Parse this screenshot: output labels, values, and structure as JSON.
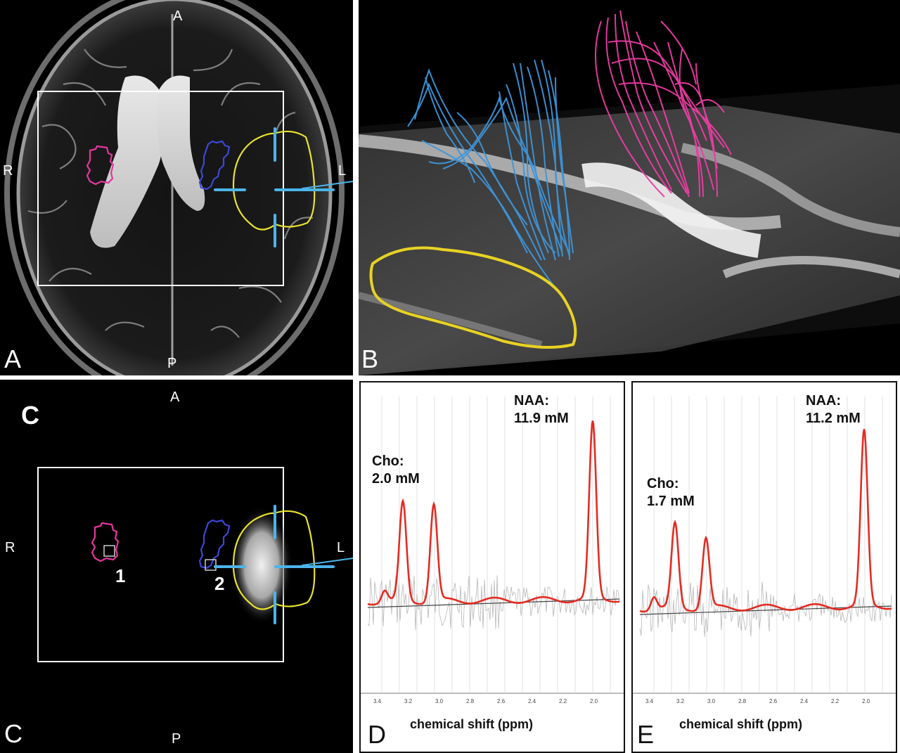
{
  "panel_a": {
    "orient": {
      "top": "A",
      "bottom": "P",
      "left": "R",
      "right": "L"
    },
    "corner": "A"
  },
  "panel_b": {
    "corner": "B"
  },
  "panel_c": {
    "orient": {
      "top": "A",
      "bottom": "P",
      "left": "R",
      "right": "L"
    },
    "corner": "C",
    "big_label": "C",
    "voxels": [
      "1",
      "2"
    ]
  },
  "panel_d": {
    "corner": "D",
    "cho": {
      "name": "Cho:",
      "value": "2.0 mM"
    },
    "naa": {
      "name": "NAA:",
      "value": "11.9 mM"
    },
    "xlabel": "chemical shift (ppm)",
    "ticks": [
      "3.4",
      "3.2",
      "3.0",
      "2.8",
      "2.6",
      "2.4",
      "2.2",
      "2.0"
    ]
  },
  "panel_e": {
    "corner": "E",
    "cho": {
      "name": "Cho:",
      "value": "1.7 mM"
    },
    "naa": {
      "name": "NAA:",
      "value": "11.2 mM"
    },
    "xlabel": "chemical shift (ppm)",
    "ticks": [
      "3.4",
      "3.2",
      "3.0",
      "2.8",
      "2.6",
      "2.4",
      "2.2",
      "2.0"
    ]
  },
  "colors": {
    "roi_magenta": "#e3379e",
    "roi_blue": "#3d48d6",
    "roi_yellow": "#e8e230",
    "marker_cyan": "#4cb4ea",
    "tract_blue": "#3d96dc",
    "tract_pink": "#f03ca6",
    "spectrum_red": "#e42b22"
  }
}
